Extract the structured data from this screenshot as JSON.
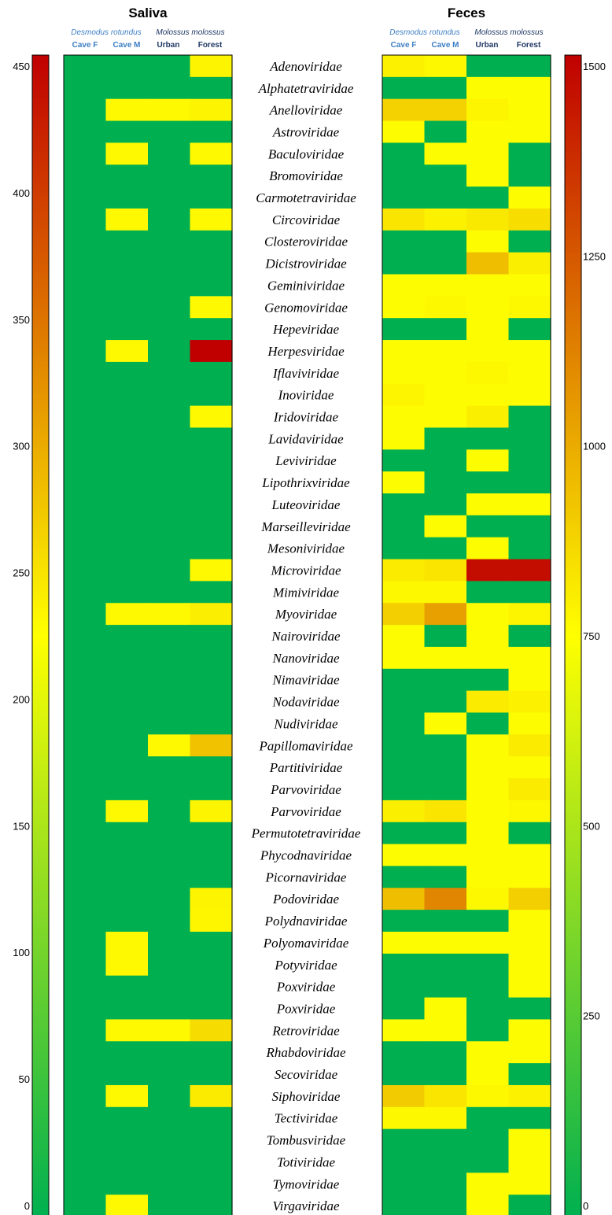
{
  "chart_data": [
    {
      "type": "heatmap",
      "title": "Saliva",
      "colorbar_ticks": [
        0,
        50,
        100,
        150,
        200,
        250,
        300,
        350,
        400,
        450
      ],
      "colorbar_range": [
        0,
        460
      ],
      "colorbar_position": "left",
      "species_headers": [
        "Desmodus rotundus",
        "Molossus molossus"
      ],
      "columns": [
        "Cave F",
        "Cave M",
        "Urban",
        "Forest"
      ],
      "rows": [
        "Adenoviridae",
        "Alphatetraviridae",
        "Anelloviridae",
        "Astroviridae",
        "Baculoviridae",
        "Bromoviridae",
        "Carmotetraviridae",
        "Circoviridae",
        "Closteroviridae",
        "Dicistroviridae",
        "Geminiviridae",
        "Genomoviridae",
        "Hepeviridae",
        "Herpesviridae",
        "Iflaviviridae",
        "Inoviridae",
        "Iridoviridae",
        "Lavidaviridae",
        "Leviviridae",
        "Lipothrixviridae",
        "Luteoviridae",
        "Marseilleviridae",
        "Mesoniviridae",
        "Microviridae",
        "Mimiviridae",
        "Myoviridae",
        "Nairoviridae",
        "Nanoviridae",
        "Nimaviridae",
        "Nodaviridae",
        "Nudiviridae",
        "Papillomaviridae",
        "Partitiviridae",
        "Parvoviridae",
        "Parvoviridae",
        "Permutotetraviridae",
        "Phycodnaviridae",
        "Picornaviridae",
        "Podoviridae",
        "Polydnaviridae",
        "Polyomaviridae",
        "Potyviridae",
        "Poxviridae",
        "Poxviridae",
        "Retroviridae",
        "Rhabdoviridae",
        "Secoviridae",
        "Siphoviridae",
        "Tectiviridae",
        "Tombusviridae",
        "Totiviridae",
        "Tymoviridae",
        "Virgaviridae"
      ],
      "values": [
        [
          0,
          0,
          0,
          240
        ],
        [
          0,
          0,
          0,
          0
        ],
        [
          0,
          235,
          235,
          240
        ],
        [
          0,
          0,
          0,
          0
        ],
        [
          0,
          235,
          0,
          235
        ],
        [
          0,
          0,
          0,
          0
        ],
        [
          0,
          0,
          0,
          0
        ],
        [
          0,
          235,
          0,
          235
        ],
        [
          0,
          0,
          0,
          0
        ],
        [
          0,
          0,
          0,
          0
        ],
        [
          0,
          0,
          0,
          0
        ],
        [
          0,
          0,
          0,
          235
        ],
        [
          0,
          0,
          0,
          0
        ],
        [
          0,
          235,
          0,
          460
        ],
        [
          0,
          0,
          0,
          0
        ],
        [
          0,
          0,
          0,
          0
        ],
        [
          0,
          0,
          0,
          235
        ],
        [
          0,
          0,
          0,
          0
        ],
        [
          0,
          0,
          0,
          0
        ],
        [
          0,
          0,
          0,
          0
        ],
        [
          0,
          0,
          0,
          0
        ],
        [
          0,
          0,
          0,
          0
        ],
        [
          0,
          0,
          0,
          0
        ],
        [
          0,
          0,
          0,
          235
        ],
        [
          0,
          0,
          0,
          0
        ],
        [
          0,
          235,
          235,
          245
        ],
        [
          0,
          0,
          0,
          0
        ],
        [
          0,
          0,
          0,
          0
        ],
        [
          0,
          0,
          0,
          0
        ],
        [
          0,
          0,
          0,
          0
        ],
        [
          0,
          0,
          0,
          0
        ],
        [
          0,
          0,
          235,
          285
        ],
        [
          0,
          0,
          0,
          0
        ],
        [
          0,
          0,
          0,
          0
        ],
        [
          0,
          235,
          0,
          240
        ],
        [
          0,
          0,
          0,
          0
        ],
        [
          0,
          0,
          0,
          0
        ],
        [
          0,
          0,
          0,
          0
        ],
        [
          0,
          0,
          0,
          240
        ],
        [
          0,
          0,
          0,
          238
        ],
        [
          0,
          235,
          0,
          0
        ],
        [
          0,
          235,
          0,
          0
        ],
        [
          0,
          0,
          0,
          0
        ],
        [
          0,
          0,
          0,
          0
        ],
        [
          0,
          235,
          235,
          262
        ],
        [
          0,
          0,
          0,
          0
        ],
        [
          0,
          0,
          0,
          0
        ],
        [
          0,
          235,
          0,
          248
        ],
        [
          0,
          0,
          0,
          0
        ],
        [
          0,
          0,
          0,
          0
        ],
        [
          0,
          0,
          0,
          0
        ],
        [
          0,
          0,
          0,
          0
        ],
        [
          0,
          235,
          0,
          0
        ]
      ]
    },
    {
      "type": "heatmap",
      "title": "Feces",
      "colorbar_ticks": [
        0,
        250,
        500,
        750,
        1000,
        1250,
        1500
      ],
      "colorbar_range": [
        0,
        1560
      ],
      "colorbar_position": "right",
      "species_headers": [
        "Desmodus rotundus",
        "Molossus molossus"
      ],
      "columns": [
        "Cave F",
        "Cave M",
        "Urban",
        "Forest"
      ],
      "rows": [
        "Adenoviridae",
        "Alphatetraviridae",
        "Anelloviridae",
        "Astroviridae",
        "Baculoviridae",
        "Bromoviridae",
        "Carmotetraviridae",
        "Circoviridae",
        "Closteroviridae",
        "Dicistroviridae",
        "Geminiviridae",
        "Genomoviridae",
        "Hepeviridae",
        "Herpesviridae",
        "Iflaviviridae",
        "Inoviridae",
        "Iridoviridae",
        "Lavidaviridae",
        "Leviviridae",
        "Lipothrixviridae",
        "Luteoviridae",
        "Marseilleviridae",
        "Mesoniviridae",
        "Microviridae",
        "Mimiviridae",
        "Myoviridae",
        "Nairoviridae",
        "Nanoviridae",
        "Nimaviridae",
        "Nodaviridae",
        "Nudiviridae",
        "Papillomaviridae",
        "Partitiviridae",
        "Parvoviridae",
        "Parvoviridae",
        "Permutotetraviridae",
        "Phycodnaviridae",
        "Picornaviridae",
        "Podoviridae",
        "Polydnaviridae",
        "Polyomaviridae",
        "Potyviridae",
        "Poxviridae",
        "Poxviridae",
        "Retroviridae",
        "Rhabdoviridae",
        "Secoviridae",
        "Siphoviridae",
        "Tectiviridae",
        "Tombusviridae",
        "Totiviridae",
        "Tymoviridae",
        "Virgaviridae"
      ],
      "values": [
        [
          820,
          800,
          0,
          0
        ],
        [
          0,
          0,
          790,
          790
        ],
        [
          920,
          920,
          810,
          790
        ],
        [
          790,
          0,
          790,
          790
        ],
        [
          0,
          790,
          790,
          0
        ],
        [
          0,
          0,
          790,
          0
        ],
        [
          0,
          0,
          0,
          790
        ],
        [
          860,
          820,
          850,
          880
        ],
        [
          0,
          0,
          790,
          0
        ],
        [
          0,
          0,
          980,
          830
        ],
        [
          790,
          790,
          790,
          790
        ],
        [
          790,
          800,
          790,
          800
        ],
        [
          0,
          0,
          790,
          0
        ],
        [
          790,
          790,
          790,
          790
        ],
        [
          790,
          790,
          800,
          790
        ],
        [
          810,
          790,
          790,
          790
        ],
        [
          790,
          790,
          830,
          0
        ],
        [
          790,
          0,
          0,
          0
        ],
        [
          0,
          0,
          790,
          0
        ],
        [
          790,
          0,
          0,
          0
        ],
        [
          0,
          0,
          790,
          790
        ],
        [
          0,
          790,
          0,
          0
        ],
        [
          0,
          0,
          790,
          0
        ],
        [
          840,
          860,
          1520,
          1520
        ],
        [
          800,
          800,
          0,
          0
        ],
        [
          930,
          1070,
          790,
          810
        ],
        [
          790,
          0,
          790,
          0
        ],
        [
          790,
          790,
          790,
          790
        ],
        [
          0,
          0,
          0,
          790
        ],
        [
          0,
          0,
          840,
          820
        ],
        [
          0,
          790,
          0,
          790
        ],
        [
          0,
          0,
          790,
          840
        ],
        [
          0,
          0,
          790,
          790
        ],
        [
          0,
          0,
          790,
          840
        ],
        [
          830,
          860,
          790,
          800
        ],
        [
          0,
          0,
          790,
          0
        ],
        [
          790,
          790,
          790,
          790
        ],
        [
          0,
          0,
          790,
          790
        ],
        [
          980,
          1150,
          800,
          930
        ],
        [
          0,
          0,
          0,
          790
        ],
        [
          790,
          790,
          790,
          790
        ],
        [
          0,
          0,
          0,
          790
        ],
        [
          0,
          0,
          0,
          790
        ],
        [
          0,
          790,
          0,
          0
        ],
        [
          790,
          790,
          0,
          790
        ],
        [
          0,
          0,
          790,
          790
        ],
        [
          0,
          0,
          790,
          0
        ],
        [
          940,
          860,
          800,
          820
        ],
        [
          800,
          800,
          0,
          0
        ],
        [
          0,
          0,
          0,
          790
        ],
        [
          0,
          0,
          0,
          790
        ],
        [
          0,
          0,
          790,
          790
        ],
        [
          0,
          0,
          790,
          0
        ]
      ]
    }
  ]
}
